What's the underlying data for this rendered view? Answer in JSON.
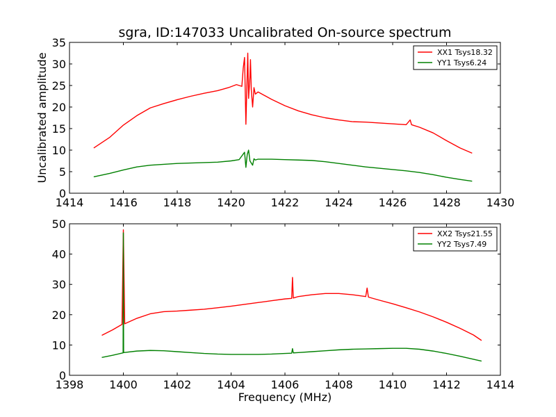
{
  "figure": {
    "title": "sgra, ID:147033 Uncalibrated On-source spectrum"
  },
  "chart_data": [
    {
      "type": "line",
      "title": "sgra, ID:147033 Uncalibrated On-source spectrum",
      "xlabel": "",
      "ylabel": "Uncalibrated amplitude",
      "xlim": [
        1414,
        1430
      ],
      "ylim": [
        0,
        35
      ],
      "xticks": [
        "1414",
        "1416",
        "1418",
        "1420",
        "1422",
        "1424",
        "1426",
        "1428",
        "1430"
      ],
      "yticks": [
        "0",
        "5",
        "10",
        "15",
        "20",
        "25",
        "30",
        "35"
      ],
      "grid": false,
      "legend_position": "top-right",
      "series": [
        {
          "name": "XX1 Tsys18.32",
          "color": "#ff0000",
          "x": [
            1414.9,
            1415.5,
            1416.0,
            1416.5,
            1417.0,
            1417.5,
            1418.0,
            1418.5,
            1419.0,
            1419.5,
            1419.9,
            1420.2,
            1420.4,
            1420.45,
            1420.5,
            1420.55,
            1420.6,
            1420.62,
            1420.65,
            1420.7,
            1420.72,
            1420.75,
            1420.8,
            1420.85,
            1420.9,
            1421.0,
            1421.5,
            1422.0,
            1422.5,
            1423.0,
            1423.5,
            1424.0,
            1424.5,
            1425.0,
            1425.5,
            1426.0,
            1426.5,
            1426.65,
            1426.7,
            1426.75,
            1427.0,
            1427.5,
            1428.0,
            1428.5,
            1428.95
          ],
          "values": [
            10.5,
            13.0,
            15.8,
            18.0,
            19.8,
            20.8,
            21.7,
            22.5,
            23.2,
            23.8,
            24.5,
            25.2,
            24.8,
            29.0,
            31.5,
            16.0,
            28.0,
            32.5,
            22.0,
            27.0,
            31.0,
            24.0,
            20.0,
            24.5,
            23.0,
            23.5,
            21.8,
            20.3,
            19.1,
            18.2,
            17.5,
            17.0,
            16.6,
            16.5,
            16.3,
            16.1,
            15.9,
            17.0,
            15.9,
            15.8,
            15.3,
            14.0,
            12.2,
            10.5,
            9.3
          ]
        },
        {
          "name": "YY1 Tsys6.24",
          "color": "#008000",
          "x": [
            1414.9,
            1415.5,
            1416.0,
            1416.5,
            1417.0,
            1417.5,
            1418.0,
            1418.5,
            1419.0,
            1419.5,
            1420.0,
            1420.3,
            1420.5,
            1420.55,
            1420.6,
            1420.65,
            1420.7,
            1420.8,
            1420.85,
            1420.9,
            1421.0,
            1421.5,
            1422.0,
            1422.5,
            1423.0,
            1423.5,
            1424.0,
            1424.5,
            1425.0,
            1425.5,
            1426.0,
            1426.5,
            1427.0,
            1427.5,
            1428.0,
            1428.5,
            1428.95
          ],
          "values": [
            3.8,
            4.6,
            5.4,
            6.1,
            6.5,
            6.7,
            6.9,
            7.0,
            7.1,
            7.2,
            7.5,
            7.8,
            9.5,
            6.0,
            9.0,
            10.0,
            7.5,
            6.5,
            8.0,
            7.7,
            7.9,
            7.9,
            7.8,
            7.7,
            7.6,
            7.3,
            6.9,
            6.5,
            6.1,
            5.8,
            5.5,
            5.2,
            4.8,
            4.3,
            3.7,
            3.2,
            2.8
          ]
        }
      ]
    },
    {
      "type": "line",
      "title": "",
      "xlabel": "Frequency (MHz)",
      "ylabel": "",
      "xlim": [
        1398,
        1414
      ],
      "ylim": [
        0,
        50
      ],
      "xticks": [
        "1398",
        "1400",
        "1402",
        "1404",
        "1406",
        "1408",
        "1410",
        "1412",
        "1414"
      ],
      "yticks": [
        "0",
        "10",
        "20",
        "30",
        "40",
        "50"
      ],
      "grid": false,
      "legend_position": "top-right",
      "series": [
        {
          "name": "XX2 Tsys21.55",
          "color": "#ff0000",
          "x": [
            1399.2,
            1399.6,
            1399.95,
            1400.0,
            1400.05,
            1400.5,
            1401.0,
            1401.5,
            1402.0,
            1402.5,
            1403.0,
            1403.5,
            1404.0,
            1404.5,
            1405.0,
            1405.5,
            1406.0,
            1406.25,
            1406.28,
            1406.31,
            1406.5,
            1407.0,
            1407.5,
            1408.0,
            1408.5,
            1409.0,
            1409.05,
            1409.1,
            1409.5,
            1410.0,
            1410.5,
            1411.0,
            1411.5,
            1412.0,
            1412.5,
            1413.0,
            1413.3
          ],
          "values": [
            13.2,
            15.0,
            16.8,
            48.0,
            17.0,
            18.8,
            20.3,
            21.0,
            21.2,
            21.5,
            21.8,
            22.3,
            22.8,
            23.4,
            24.0,
            24.6,
            25.2,
            25.4,
            32.3,
            25.5,
            26.0,
            26.6,
            27.0,
            27.0,
            26.6,
            26.0,
            28.8,
            25.8,
            24.8,
            23.6,
            22.3,
            20.9,
            19.3,
            17.5,
            15.5,
            13.3,
            11.5
          ]
        },
        {
          "name": "YY2 Tsys7.49",
          "color": "#008000",
          "x": [
            1399.2,
            1399.6,
            1399.99,
            1400.0,
            1400.01,
            1400.5,
            1401.0,
            1401.5,
            1402.0,
            1402.5,
            1403.0,
            1403.5,
            1404.0,
            1404.5,
            1405.0,
            1405.5,
            1406.0,
            1406.25,
            1406.28,
            1406.31,
            1406.5,
            1407.0,
            1407.5,
            1408.0,
            1408.5,
            1409.0,
            1409.5,
            1410.0,
            1410.5,
            1411.0,
            1411.5,
            1412.0,
            1412.5,
            1413.0,
            1413.3
          ],
          "values": [
            5.9,
            6.6,
            7.4,
            47.0,
            7.5,
            8.0,
            8.2,
            8.1,
            7.8,
            7.5,
            7.2,
            7.0,
            6.9,
            6.9,
            6.9,
            7.0,
            7.2,
            7.3,
            8.8,
            7.4,
            7.5,
            7.8,
            8.1,
            8.4,
            8.6,
            8.7,
            8.8,
            8.9,
            8.9,
            8.6,
            8.0,
            7.2,
            6.3,
            5.3,
            4.7
          ]
        }
      ]
    }
  ]
}
